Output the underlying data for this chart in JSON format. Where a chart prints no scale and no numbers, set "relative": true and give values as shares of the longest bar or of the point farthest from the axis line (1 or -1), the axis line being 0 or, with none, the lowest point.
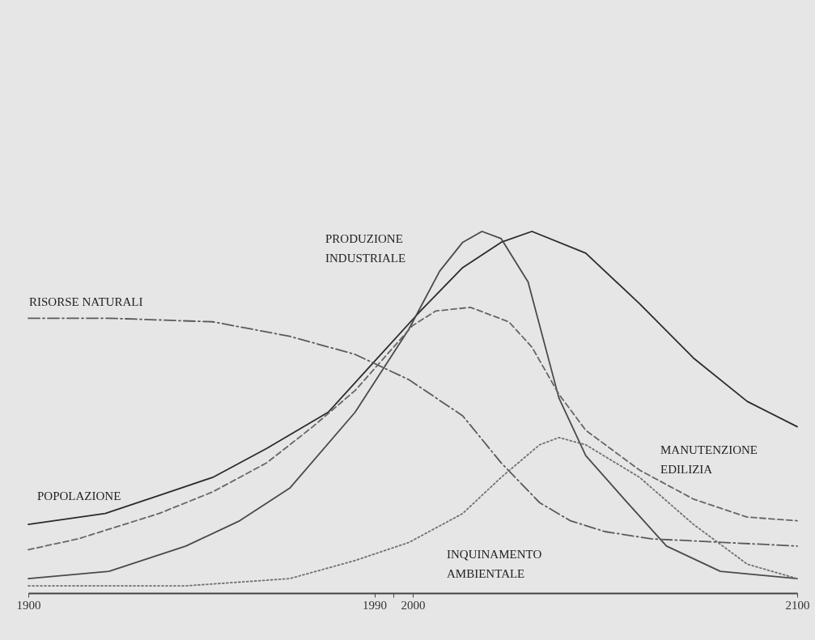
{
  "chart_data": {
    "type": "line",
    "relative": true,
    "xlim": [
      1900,
      2100
    ],
    "xticks": [
      1900,
      1990,
      {
        "value": 1995,
        "label": null
      },
      2000,
      2100
    ],
    "grid": false,
    "series": [
      {
        "name": "POPOLAZIONE",
        "color": "#2b2b2b",
        "line_style": "solid",
        "x": [
          1900,
          1920,
          1934,
          1948,
          1962,
          1978,
          1990,
          2002,
          2013,
          2023,
          2031,
          2045,
          2059,
          2073,
          2087,
          2100
        ],
        "values": [
          0.19,
          0.22,
          0.27,
          0.32,
          0.4,
          0.5,
          0.64,
          0.78,
          0.9,
          0.97,
          1,
          0.94,
          0.8,
          0.65,
          0.53,
          0.46
        ]
      },
      {
        "name": "PRODUZIONE INDUSTRIALE",
        "color": "#4a4a4a",
        "line_style": "solid",
        "x": [
          1900,
          1921,
          1941,
          1955,
          1968,
          1985,
          1999,
          2007,
          2013,
          2018,
          2023,
          2030,
          2038,
          2045,
          2055,
          2066,
          2080,
          2100
        ],
        "values": [
          0.04,
          0.06,
          0.13,
          0.2,
          0.29,
          0.5,
          0.73,
          0.89,
          0.97,
          1,
          0.98,
          0.86,
          0.54,
          0.38,
          0.26,
          0.13,
          0.06,
          0.04
        ]
      },
      {
        "name": "RISORSE NATURALI",
        "color": "#5a5a5a",
        "line_style": "dashdot",
        "x": [
          1900,
          1921,
          1948,
          1968,
          1985,
          1999,
          2013,
          2023,
          2033,
          2041,
          2050,
          2062,
          2100
        ],
        "values": [
          0.76,
          0.76,
          0.75,
          0.71,
          0.66,
          0.59,
          0.49,
          0.36,
          0.25,
          0.2,
          0.17,
          0.15,
          0.13
        ]
      },
      {
        "name": "MANUTENZIONE EDILIZIA",
        "color": "#666666",
        "line_style": "dashed",
        "x": [
          1900,
          1913,
          1934,
          1948,
          1962,
          1974,
          1985,
          2000,
          2006,
          2015,
          2025,
          2031,
          2038,
          2045,
          2059,
          2073,
          2087,
          2100
        ],
        "values": [
          0.12,
          0.15,
          0.22,
          0.28,
          0.36,
          0.46,
          0.56,
          0.74,
          0.78,
          0.79,
          0.75,
          0.68,
          0.55,
          0.45,
          0.34,
          0.26,
          0.21,
          0.2
        ]
      },
      {
        "name": "INQUINAMENTO AMBIENTALE",
        "color": "#707070",
        "line_style": "dotted",
        "x": [
          1900,
          1941,
          1968,
          1985,
          1999,
          2013,
          2023,
          2033,
          2038,
          2045,
          2059,
          2073,
          2087,
          2100
        ],
        "values": [
          0.02,
          0.02,
          0.04,
          0.09,
          0.14,
          0.22,
          0.32,
          0.41,
          0.43,
          0.41,
          0.32,
          0.19,
          0.08,
          0.04
        ]
      }
    ]
  }
}
